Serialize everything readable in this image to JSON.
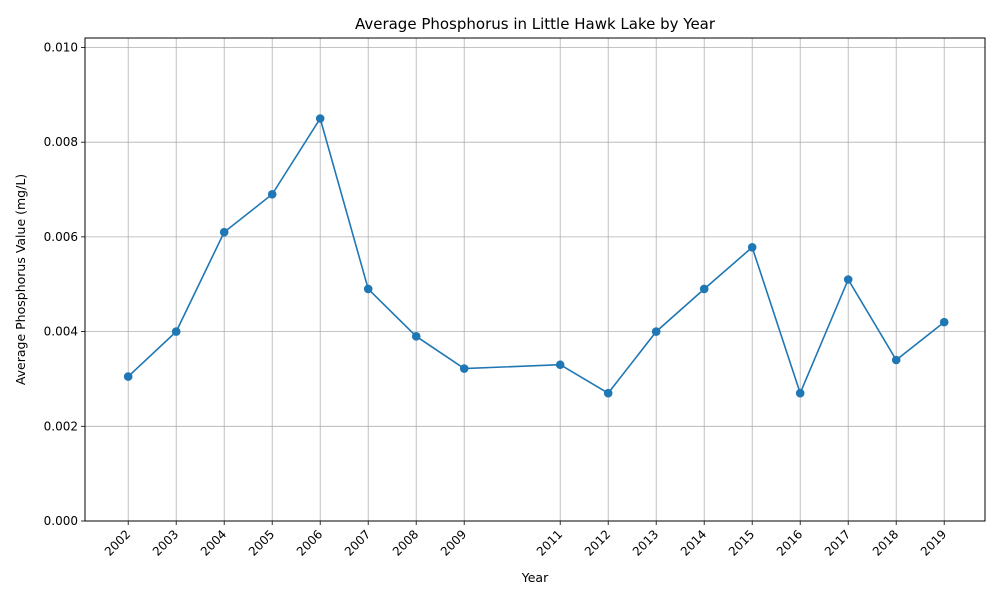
{
  "chart_data": {
    "type": "line",
    "title": "Average Phosphorus in Little Hawk Lake by Year",
    "xlabel": "Year",
    "ylabel": "Average Phosphorus Value (mg/L)",
    "x": [
      2002,
      2003,
      2004,
      2005,
      2006,
      2007,
      2008,
      2009,
      2011,
      2012,
      2013,
      2014,
      2015,
      2016,
      2017,
      2018,
      2019
    ],
    "x_tick_labels": [
      "2002",
      "2003",
      "2004",
      "2005",
      "2006",
      "2007",
      "2008",
      "2009",
      "2011",
      "2012",
      "2013",
      "2014",
      "2015",
      "2016",
      "2017",
      "2018",
      "2019"
    ],
    "series": [
      {
        "values": [
          0.00305,
          0.004,
          0.0061,
          0.0069,
          0.0085,
          0.0049,
          0.0039,
          0.00322,
          0.0033,
          0.0027,
          0.004,
          0.0049,
          0.00578,
          0.0027,
          0.0051,
          0.0034,
          0.0042
        ],
        "color": "#1f77b4",
        "marker": "circle"
      }
    ],
    "xlim": [
      2001.1,
      2019.85
    ],
    "ylim": [
      0,
      0.0102
    ],
    "y_ticks": [
      0.0,
      0.002,
      0.004,
      0.006,
      0.008,
      0.01
    ],
    "y_tick_labels": [
      "0.000",
      "0.002",
      "0.004",
      "0.006",
      "0.008",
      "0.010"
    ],
    "grid": true,
    "x_tick_rotation": 45
  }
}
